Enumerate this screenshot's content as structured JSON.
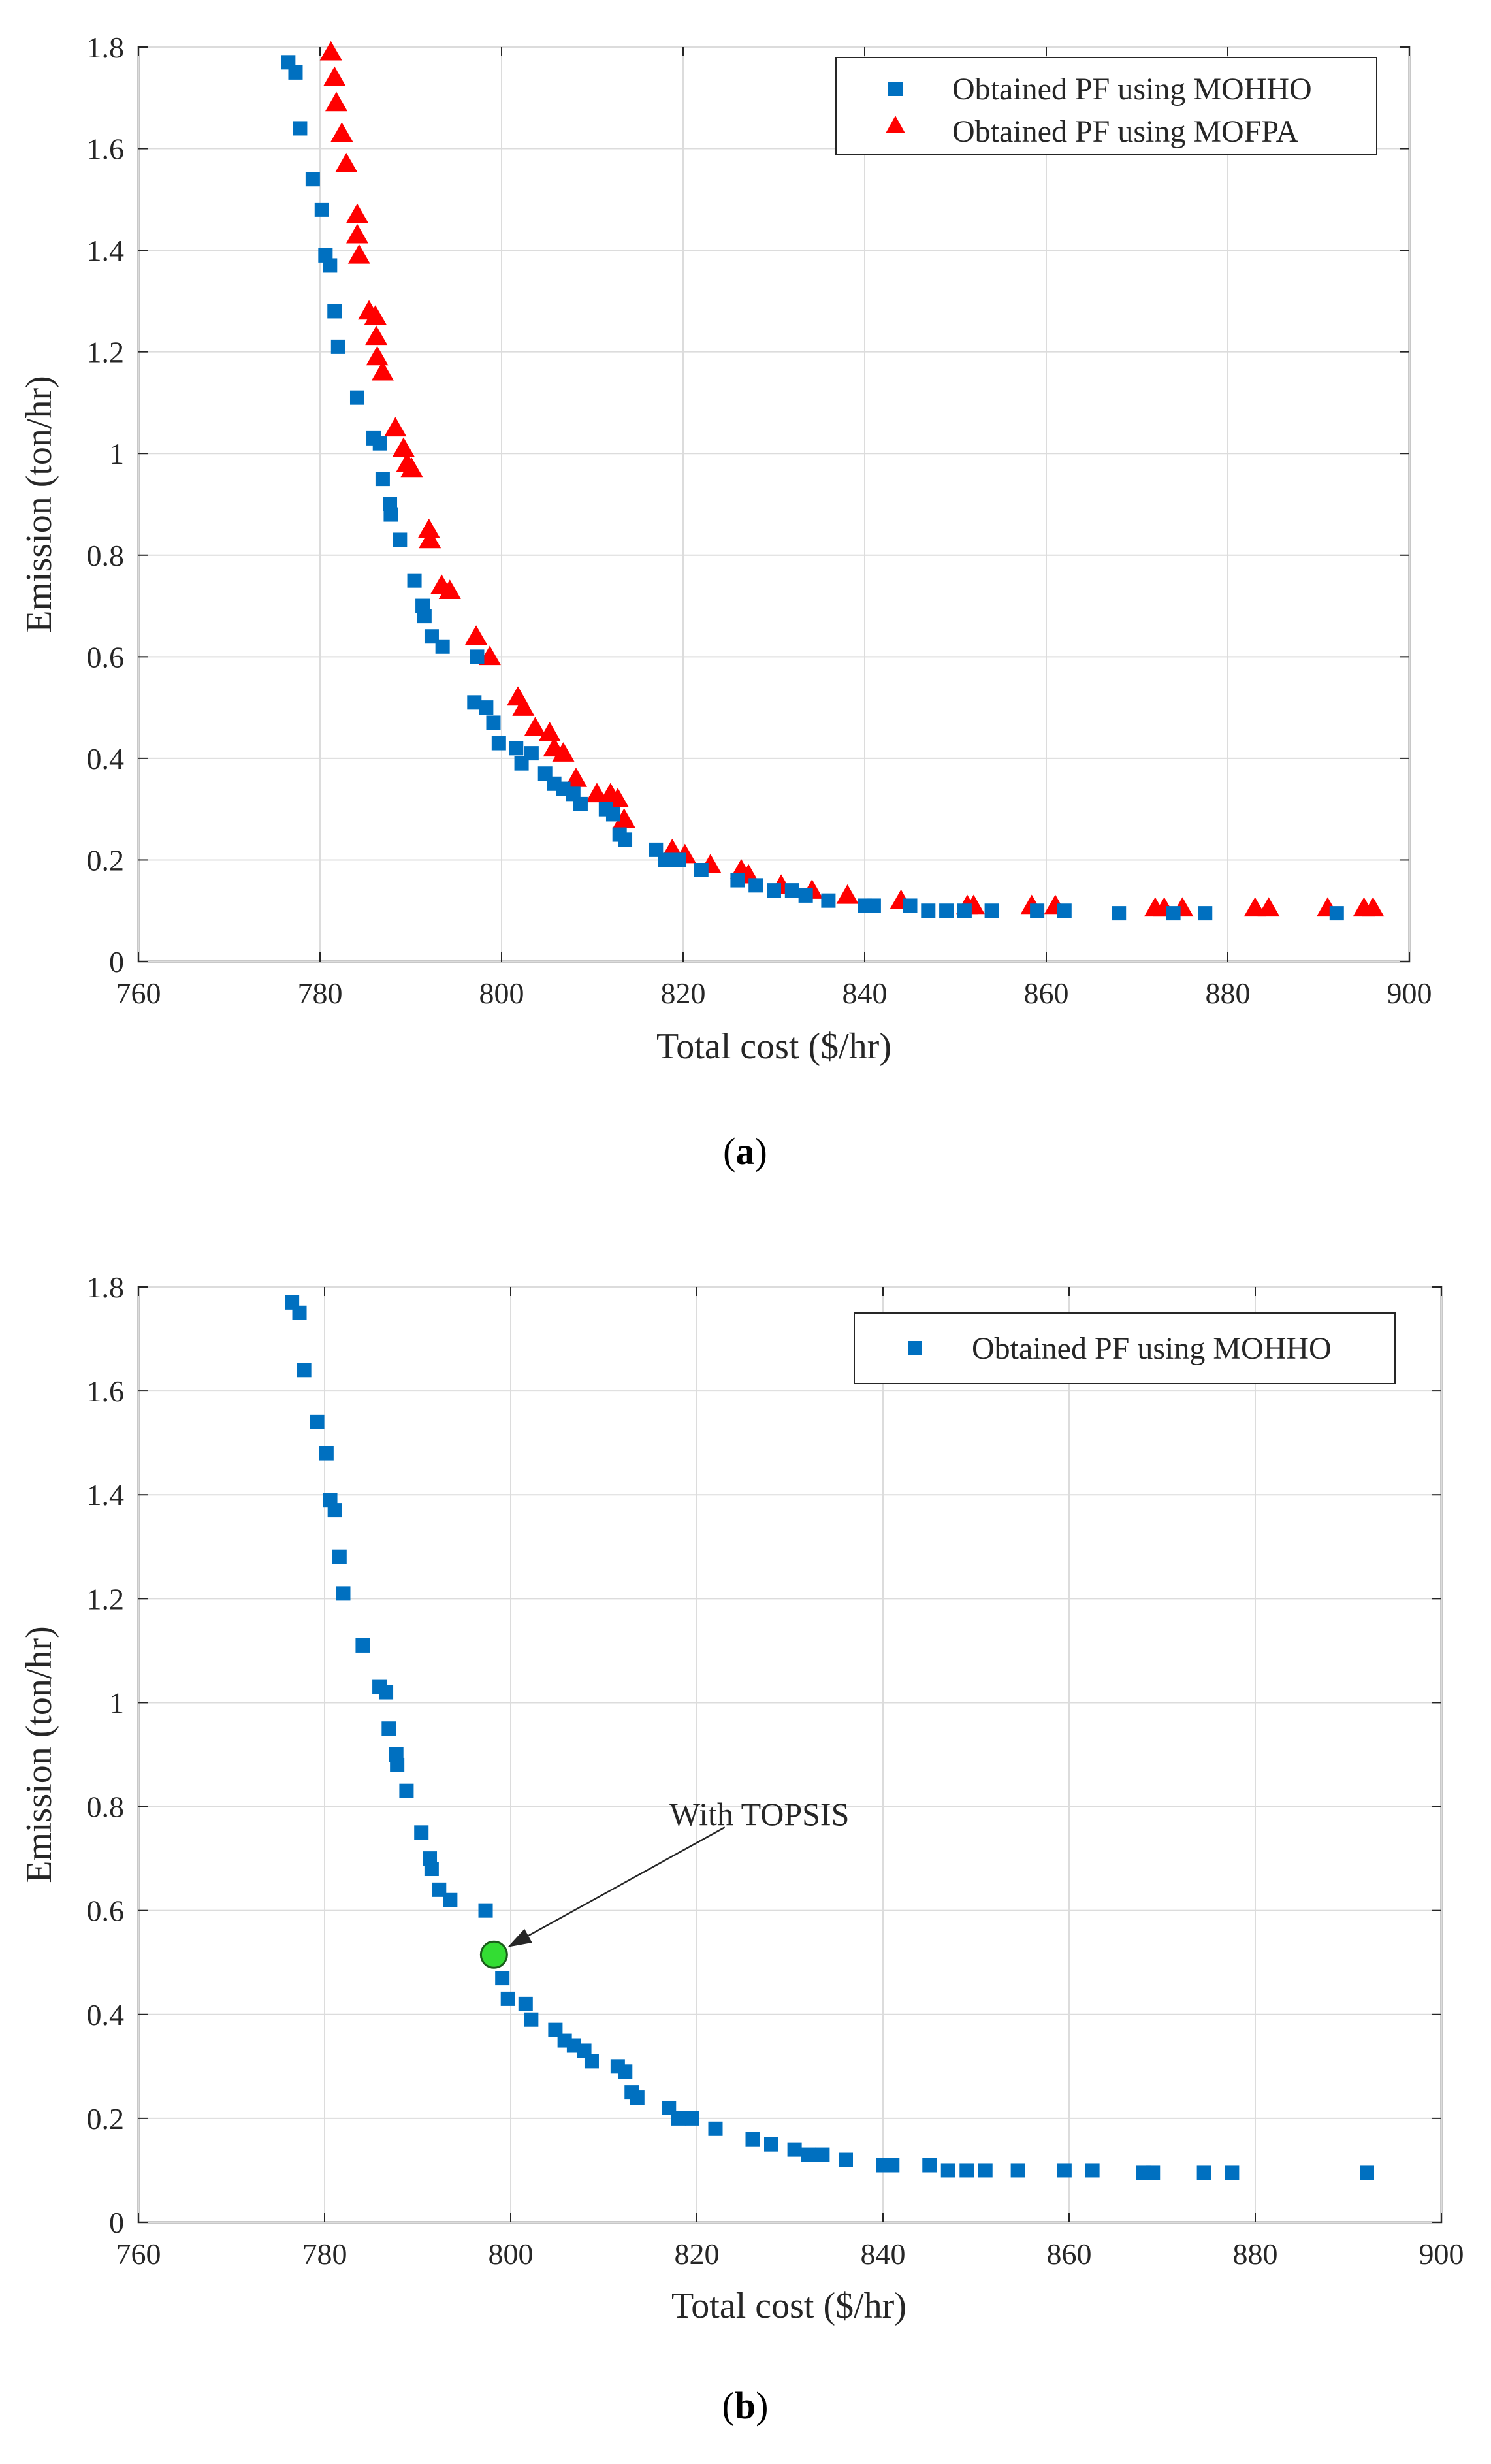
{
  "colors": {
    "mohho": "#0070C0",
    "mofpa": "#FF0000",
    "topsis": "#33DD33",
    "grid": "#DCDCDC",
    "axis": "#262626"
  },
  "chart_data": [
    {
      "type": "scatter",
      "panel": "a",
      "xlabel": "Total cost ($/hr)",
      "ylabel": "Emission (ton/hr)",
      "xlim": [
        760,
        900
      ],
      "ylim": [
        0,
        1.8
      ],
      "xticks": [
        "760",
        "780",
        "800",
        "820",
        "840",
        "860",
        "880",
        "900"
      ],
      "yticks": [
        "0",
        "0.2",
        "0.4",
        "0.6",
        "0.8",
        "1",
        "1.2",
        "1.4",
        "1.6",
        "1.8"
      ],
      "grid": true,
      "legend_position": "top-right",
      "series": [
        {
          "name": "Obtained PF using MOHHO",
          "marker": "square",
          "color": "#0070C0",
          "points": [
            [
              776.5,
              1.77
            ],
            [
              777.3,
              1.75
            ],
            [
              777.8,
              1.64
            ],
            [
              779.2,
              1.54
            ],
            [
              780.2,
              1.48
            ],
            [
              780.6,
              1.39
            ],
            [
              781.1,
              1.37
            ],
            [
              781.6,
              1.28
            ],
            [
              782,
              1.21
            ],
            [
              784.1,
              1.11
            ],
            [
              785.9,
              1.03
            ],
            [
              786.6,
              1.02
            ],
            [
              786.9,
              0.95
            ],
            [
              787.7,
              0.9
            ],
            [
              787.8,
              0.88
            ],
            [
              788.8,
              0.83
            ],
            [
              790.4,
              0.75
            ],
            [
              791.3,
              0.7
            ],
            [
              791.5,
              0.68
            ],
            [
              792.3,
              0.64
            ],
            [
              793.5,
              0.62
            ],
            [
              797.3,
              0.6
            ],
            [
              797,
              0.51
            ],
            [
              798.3,
              0.5
            ],
            [
              799.1,
              0.47
            ],
            [
              799.7,
              0.43
            ],
            [
              801.6,
              0.42
            ],
            [
              802.2,
              0.39
            ],
            [
              803.3,
              0.41
            ],
            [
              804.8,
              0.37
            ],
            [
              805.8,
              0.35
            ],
            [
              806.8,
              0.34
            ],
            [
              807.9,
              0.33
            ],
            [
              808.7,
              0.31
            ],
            [
              811.5,
              0.3
            ],
            [
              812.3,
              0.29
            ],
            [
              813,
              0.25
            ],
            [
              813.6,
              0.24
            ],
            [
              817,
              0.22
            ],
            [
              818,
              0.2
            ],
            [
              819.5,
              0.2
            ],
            [
              822,
              0.18
            ],
            [
              826,
              0.16
            ],
            [
              828,
              0.15
            ],
            [
              830,
              0.14
            ],
            [
              832,
              0.14
            ],
            [
              833.5,
              0.13
            ],
            [
              836,
              0.12
            ],
            [
              840,
              0.11
            ],
            [
              841,
              0.11
            ],
            [
              845,
              0.11
            ],
            [
              847,
              0.1
            ],
            [
              849,
              0.1
            ],
            [
              851,
              0.1
            ],
            [
              854,
              0.1
            ],
            [
              859,
              0.1
            ],
            [
              862,
              0.1
            ],
            [
              868,
              0.095
            ],
            [
              874,
              0.095
            ],
            [
              877.5,
              0.095
            ],
            [
              892,
              0.095
            ]
          ]
        },
        {
          "name": "Obtained PF using MOFPA",
          "marker": "triangle",
          "color": "#FF0000",
          "points": [
            [
              781.2,
              1.79
            ],
            [
              781.6,
              1.74
            ],
            [
              781.8,
              1.69
            ],
            [
              782.4,
              1.63
            ],
            [
              782.9,
              1.57
            ],
            [
              784.1,
              1.47
            ],
            [
              784.1,
              1.43
            ],
            [
              784.3,
              1.39
            ],
            [
              785.4,
              1.28
            ],
            [
              786.1,
              1.27
            ],
            [
              786.2,
              1.23
            ],
            [
              786.3,
              1.19
            ],
            [
              786.9,
              1.16
            ],
            [
              788.3,
              1.05
            ],
            [
              789.2,
              1.01
            ],
            [
              789.6,
              0.98
            ],
            [
              790.1,
              0.97
            ],
            [
              792,
              0.85
            ],
            [
              792.1,
              0.83
            ],
            [
              793.4,
              0.74
            ],
            [
              794.3,
              0.73
            ],
            [
              797.2,
              0.64
            ],
            [
              798.7,
              0.6
            ],
            [
              801.8,
              0.52
            ],
            [
              802.4,
              0.5
            ],
            [
              803.7,
              0.46
            ],
            [
              805.3,
              0.45
            ],
            [
              805.8,
              0.42
            ],
            [
              806.8,
              0.41
            ],
            [
              808.2,
              0.36
            ],
            [
              810.5,
              0.33
            ],
            [
              812,
              0.33
            ],
            [
              812.8,
              0.32
            ],
            [
              813.5,
              0.28
            ],
            [
              818.8,
              0.22
            ],
            [
              820.2,
              0.21
            ],
            [
              823,
              0.19
            ],
            [
              826.4,
              0.18
            ],
            [
              827.2,
              0.17
            ],
            [
              830.8,
              0.15
            ],
            [
              834.2,
              0.14
            ],
            [
              838.1,
              0.13
            ],
            [
              844,
              0.12
            ],
            [
              851.3,
              0.11
            ],
            [
              852,
              0.11
            ],
            [
              858.4,
              0.11
            ],
            [
              861,
              0.11
            ],
            [
              872,
              0.105
            ],
            [
              873,
              0.105
            ],
            [
              875,
              0.105
            ],
            [
              883,
              0.105
            ],
            [
              884.5,
              0.105
            ],
            [
              891,
              0.105
            ],
            [
              895,
              0.105
            ],
            [
              896,
              0.105
            ]
          ]
        }
      ]
    },
    {
      "type": "scatter",
      "panel": "b",
      "xlabel": "Total cost ($/hr)",
      "ylabel": "Emission (ton/hr)",
      "xlim": [
        760,
        900
      ],
      "ylim": [
        0,
        1.8
      ],
      "xticks": [
        "760",
        "780",
        "800",
        "820",
        "840",
        "860",
        "880",
        "900"
      ],
      "yticks": [
        "0",
        "0.2",
        "0.4",
        "0.6",
        "0.8",
        "1",
        "1.2",
        "1.4",
        "1.6",
        "1.8"
      ],
      "grid": true,
      "legend_position": "top-right",
      "series": [
        {
          "name": "Obtained PF using MOHHO",
          "marker": "square",
          "color": "#0070C0",
          "points": [
            [
              776.5,
              1.77
            ],
            [
              777.3,
              1.75
            ],
            [
              777.8,
              1.64
            ],
            [
              779.2,
              1.54
            ],
            [
              780.2,
              1.48
            ],
            [
              780.6,
              1.39
            ],
            [
              781.1,
              1.37
            ],
            [
              781.6,
              1.28
            ],
            [
              782,
              1.21
            ],
            [
              784.1,
              1.11
            ],
            [
              785.9,
              1.03
            ],
            [
              786.6,
              1.02
            ],
            [
              786.9,
              0.95
            ],
            [
              787.7,
              0.9
            ],
            [
              787.8,
              0.88
            ],
            [
              788.8,
              0.83
            ],
            [
              790.4,
              0.75
            ],
            [
              791.3,
              0.7
            ],
            [
              791.5,
              0.68
            ],
            [
              792.3,
              0.64
            ],
            [
              793.5,
              0.62
            ],
            [
              797.3,
              0.6
            ],
            [
              799.1,
              0.47
            ],
            [
              799.7,
              0.43
            ],
            [
              801.6,
              0.42
            ],
            [
              802.2,
              0.39
            ],
            [
              804.8,
              0.37
            ],
            [
              805.8,
              0.35
            ],
            [
              806.8,
              0.34
            ],
            [
              807.9,
              0.33
            ],
            [
              808.7,
              0.31
            ],
            [
              811.5,
              0.3
            ],
            [
              812.3,
              0.29
            ],
            [
              813,
              0.25
            ],
            [
              813.6,
              0.24
            ],
            [
              817,
              0.22
            ],
            [
              818,
              0.2
            ],
            [
              819.5,
              0.2
            ],
            [
              822,
              0.18
            ],
            [
              826,
              0.16
            ],
            [
              828,
              0.15
            ],
            [
              830.5,
              0.14
            ],
            [
              832,
              0.13
            ],
            [
              833.5,
              0.13
            ],
            [
              836,
              0.12
            ],
            [
              840,
              0.11
            ],
            [
              841,
              0.11
            ],
            [
              845,
              0.11
            ],
            [
              847,
              0.1
            ],
            [
              849,
              0.1
            ],
            [
              851,
              0.1
            ],
            [
              854.5,
              0.1
            ],
            [
              859.5,
              0.1
            ],
            [
              862.5,
              0.1
            ],
            [
              868,
              0.095
            ],
            [
              869,
              0.095
            ],
            [
              874.5,
              0.095
            ],
            [
              877.5,
              0.095
            ],
            [
              892,
              0.095
            ]
          ]
        }
      ],
      "highlight": {
        "label": "With TOPSIS",
        "point": [
          798.2,
          0.515
        ],
        "color": "#33DD33"
      }
    }
  ],
  "captions": {
    "a": "a",
    "b": "b"
  }
}
